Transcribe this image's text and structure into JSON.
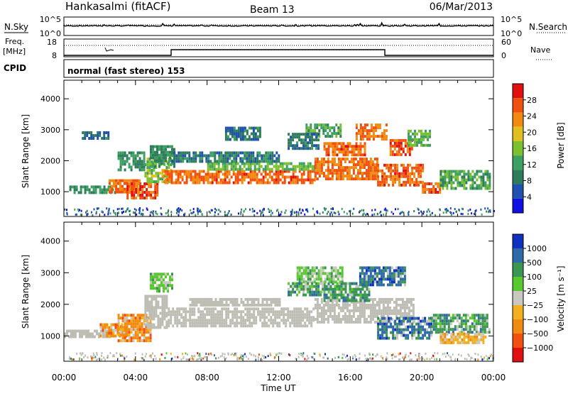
{
  "header": {
    "station": "Hankasalmi (fitACF)",
    "beam": "Beam 13",
    "date": "06/Mar/2013"
  },
  "top_panel": {
    "left_label": "N.Sky",
    "right_label": "N.Search",
    "left_ticks": [
      "10^5",
      "10^0"
    ],
    "right_ticks": [
      "10^5",
      "10^0"
    ]
  },
  "freq_panel": {
    "left_label_1": "Freq.",
    "left_label_2": "[MHz]",
    "left_ticks": [
      "18",
      "8"
    ],
    "right_label": "Nave",
    "right_ticks": [
      "60",
      "0"
    ]
  },
  "cpid": {
    "label": "CPID",
    "value": "normal (fast stereo) 153"
  },
  "colors": {
    "power": [
      "#1010e0",
      "#2050b0",
      "#2e7c5c",
      "#3da060",
      "#7ac030",
      "#e0c020",
      "#f08a10",
      "#f05010",
      "#e01010"
    ],
    "velocity": [
      "#e01010",
      "#f05010",
      "#f08a10",
      "#f0b020",
      "#c8c8c0",
      "#58c830",
      "#3a9650",
      "#2e6aa8",
      "#1030c0"
    ],
    "ground": "#bdbdb4"
  },
  "chart_data": [
    {
      "type": "heatmap",
      "name": "power",
      "ylabel": "Slant Range [km]",
      "yticks": [
        1000,
        2000,
        3000,
        4000
      ],
      "ylim": [
        200,
        4600
      ],
      "xlim": [
        0,
        24
      ],
      "colorbar": {
        "label": "Power [dB]",
        "ticks": [
          "28",
          "24",
          "20",
          "16",
          "12",
          "8",
          "4"
        ],
        "range": [
          0,
          32
        ]
      },
      "regions": [
        {
          "t0": 0.3,
          "t1": 2.8,
          "r_lo": 1000,
          "r_hi": 1200,
          "level": 10
        },
        {
          "t0": 2.5,
          "t1": 4.2,
          "r_lo": 1000,
          "r_hi": 1400,
          "level": 26
        },
        {
          "t0": 3.5,
          "t1": 5.2,
          "r_lo": 800,
          "r_hi": 1300,
          "level": 28
        },
        {
          "t0": 4.5,
          "t1": 6.0,
          "r_lo": 1300,
          "r_hi": 2100,
          "level": 16
        },
        {
          "t0": 4.8,
          "t1": 6.2,
          "r_lo": 1800,
          "r_hi": 2500,
          "level": 10
        },
        {
          "t0": 5.5,
          "t1": 8.0,
          "r_lo": 1250,
          "r_hi": 1700,
          "level": 26
        },
        {
          "t0": 8.0,
          "t1": 14.0,
          "r_lo": 1300,
          "r_hi": 1700,
          "level": 27
        },
        {
          "t0": 8.0,
          "t1": 14.0,
          "r_lo": 1700,
          "r_hi": 1950,
          "level": 14
        },
        {
          "t0": 14.0,
          "t1": 17.5,
          "r_lo": 1400,
          "r_hi": 2100,
          "level": 26
        },
        {
          "t0": 17.5,
          "t1": 20.0,
          "r_lo": 1200,
          "r_hi": 1900,
          "level": 27
        },
        {
          "t0": 20.0,
          "t1": 21.0,
          "r_lo": 950,
          "r_hi": 1300,
          "level": 28
        },
        {
          "t0": 21.0,
          "t1": 23.8,
          "r_lo": 1100,
          "r_hi": 1700,
          "level": 12
        },
        {
          "t0": 14.5,
          "t1": 16.8,
          "r_lo": 2200,
          "r_hi": 2600,
          "level": 27
        },
        {
          "t0": 16.3,
          "t1": 18.0,
          "r_lo": 2700,
          "r_hi": 3200,
          "level": 26
        },
        {
          "t0": 18.2,
          "t1": 19.5,
          "r_lo": 2200,
          "r_hi": 2700,
          "level": 28
        },
        {
          "t0": 19.2,
          "t1": 20.5,
          "r_lo": 2500,
          "r_hi": 3000,
          "level": 14
        },
        {
          "t0": 13.5,
          "t1": 15.5,
          "r_lo": 2800,
          "r_hi": 3200,
          "level": 12
        },
        {
          "t0": 12.5,
          "t1": 14.2,
          "r_lo": 2400,
          "r_hi": 2900,
          "level": 8
        },
        {
          "t0": 6.0,
          "t1": 12.0,
          "r_lo": 1950,
          "r_hi": 2300,
          "level": 8
        },
        {
          "t0": 1.0,
          "t1": 2.5,
          "r_lo": 2750,
          "r_hi": 2950,
          "level": 7
        },
        {
          "t0": 3.0,
          "t1": 4.5,
          "r_lo": 1700,
          "r_hi": 2300,
          "level": 10
        },
        {
          "t0": 9.0,
          "t1": 11.0,
          "r_lo": 2700,
          "r_hi": 3100,
          "level": 7
        }
      ]
    },
    {
      "type": "heatmap",
      "name": "velocity",
      "ylabel": "Slant Range [km]",
      "yticks": [
        1000,
        2000,
        3000,
        4000
      ],
      "ylim": [
        200,
        4600
      ],
      "xlim": [
        0,
        24
      ],
      "colorbar": {
        "label": "Velocity [m s⁻¹]",
        "ticks": [
          "1000",
          "500",
          "100",
          "25",
          "−25",
          "−100",
          "−500",
          "−1000"
        ]
      },
      "regions": [
        {
          "t0": 0.0,
          "t1": 2.5,
          "r_lo": 1000,
          "r_hi": 1200,
          "cls": "ground"
        },
        {
          "t0": 2.0,
          "t1": 3.5,
          "r_lo": 1000,
          "r_hi": 1400,
          "cls": -2
        },
        {
          "t0": 3.0,
          "t1": 4.8,
          "r_lo": 850,
          "r_hi": 1700,
          "cls": -2
        },
        {
          "t0": 4.5,
          "t1": 5.8,
          "r_lo": 1300,
          "r_hi": 2300,
          "cls": "ground"
        },
        {
          "t0": 5.8,
          "t1": 14.0,
          "r_lo": 1300,
          "r_hi": 1900,
          "cls": "ground"
        },
        {
          "t0": 14.0,
          "t1": 19.5,
          "r_lo": 1400,
          "r_hi": 2200,
          "cls": "ground"
        },
        {
          "t0": 14.5,
          "t1": 17.0,
          "r_lo": 2100,
          "r_hi": 2700,
          "cls": 2
        },
        {
          "t0": 16.5,
          "t1": 19.0,
          "r_lo": 2600,
          "r_hi": 3200,
          "cls": 3
        },
        {
          "t0": 17.5,
          "t1": 20.5,
          "r_lo": 900,
          "r_hi": 1600,
          "cls": 3
        },
        {
          "t0": 20.5,
          "t1": 23.8,
          "r_lo": 1100,
          "r_hi": 1700,
          "cls": 2
        },
        {
          "t0": 13.0,
          "t1": 15.5,
          "r_lo": 2700,
          "r_hi": 3200,
          "cls": 1
        },
        {
          "t0": 4.8,
          "t1": 6.0,
          "r_lo": 2400,
          "r_hi": 3000,
          "cls": 1
        },
        {
          "t0": 12.5,
          "t1": 14.5,
          "r_lo": 2300,
          "r_hi": 2700,
          "cls": 2
        },
        {
          "t0": 7.0,
          "t1": 12.0,
          "r_lo": 2000,
          "r_hi": 2200,
          "cls": "ground"
        },
        {
          "t0": 21.0,
          "t1": 23.5,
          "r_lo": 800,
          "r_hi": 1100,
          "cls": -1
        }
      ]
    }
  ],
  "time_axis": {
    "ticks": [
      "00:00",
      "04:00",
      "08:00",
      "12:00",
      "16:00",
      "20:00",
      "00:00"
    ],
    "label": "Time UT"
  }
}
